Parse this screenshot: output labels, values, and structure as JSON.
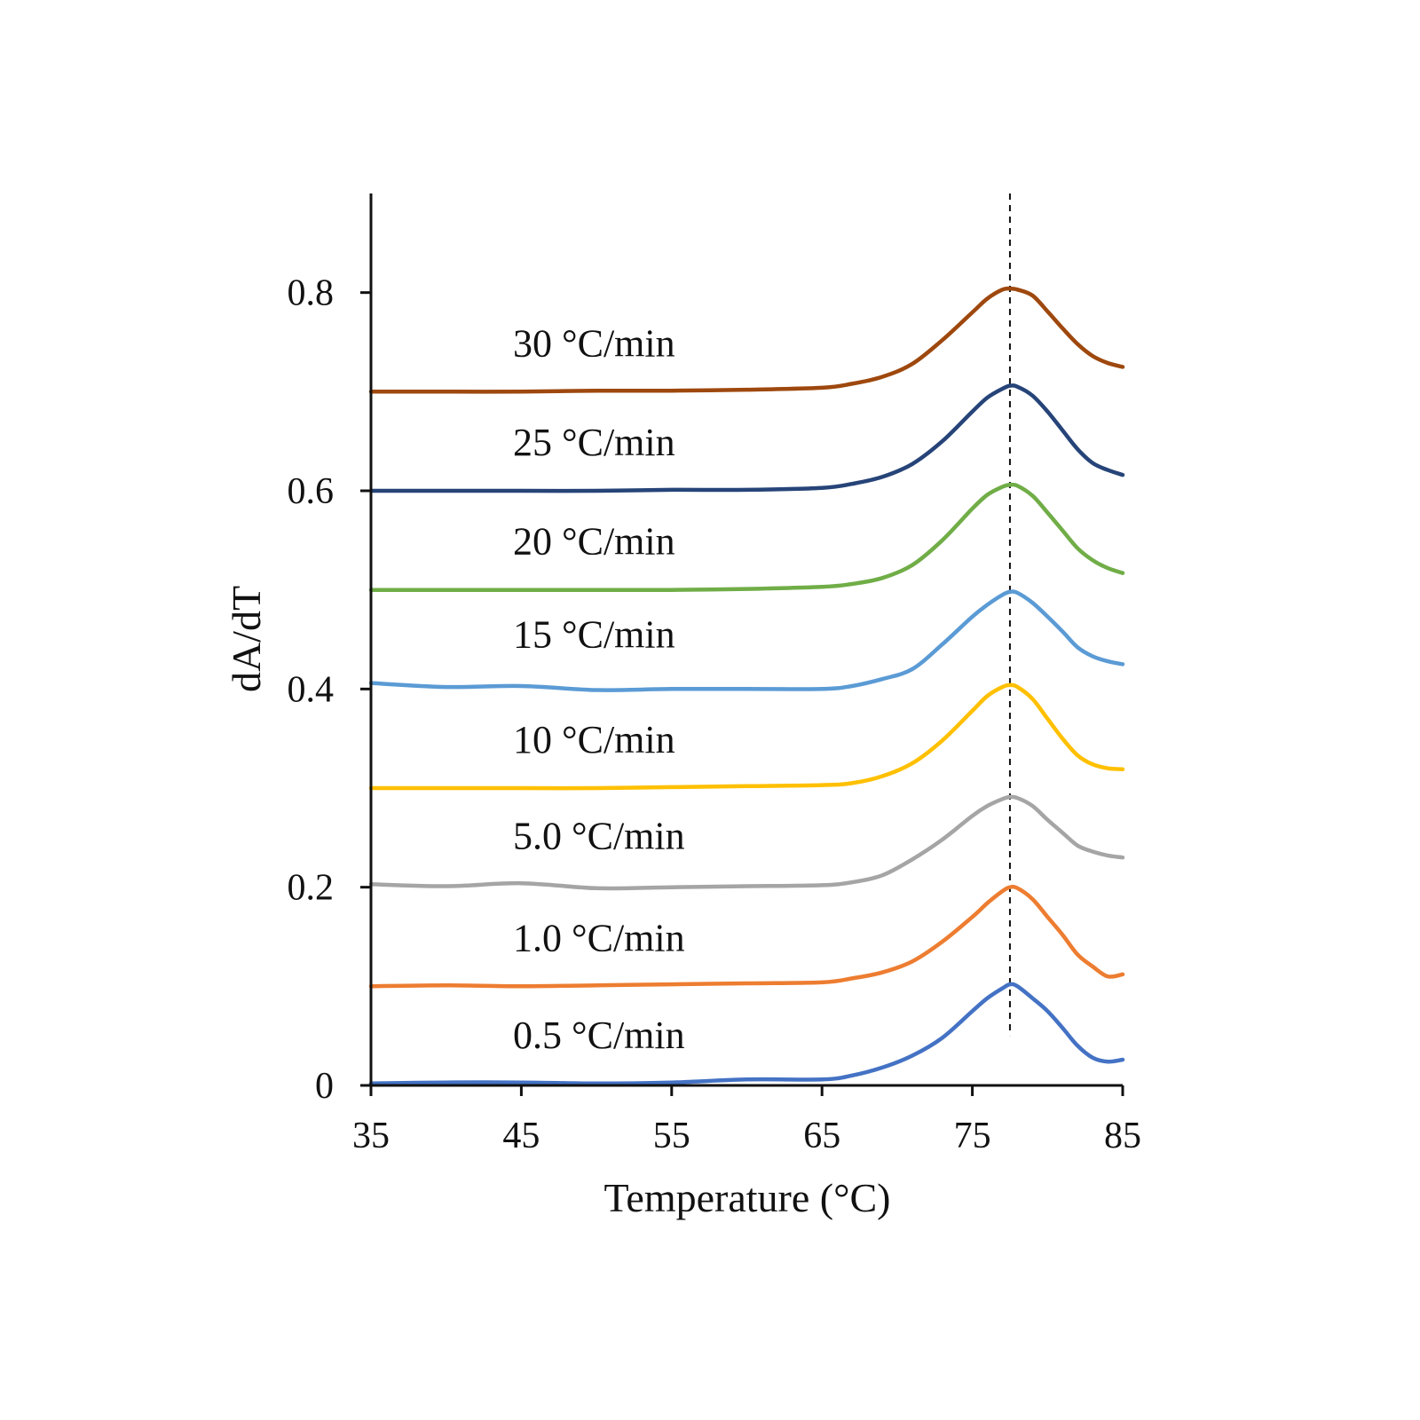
{
  "chart_data": {
    "type": "line",
    "xlabel": "Temperature (°C)",
    "ylabel": "dA/dT",
    "xlim": [
      35,
      85
    ],
    "ylim": [
      0,
      0.9
    ],
    "xticks": [
      35,
      45,
      55,
      65,
      75,
      85
    ],
    "xtick_labels": [
      "35",
      "45",
      "55",
      "65",
      "75",
      "85"
    ],
    "yticks": [
      0,
      0.2,
      0.4,
      0.6,
      0.8
    ],
    "ytick_labels": [
      "0",
      "0.2",
      "0.4",
      "0.6",
      "0.8"
    ],
    "grid": false,
    "reference_line": {
      "x": 77.5,
      "style": "dashed",
      "y_range": [
        0.05,
        0.9
      ]
    },
    "x": [
      35,
      40,
      45,
      50,
      55,
      60,
      65,
      67,
      69,
      71,
      73,
      75,
      76,
      77,
      77.5,
      78,
      79,
      80,
      81,
      82,
      83,
      84,
      85
    ],
    "series": [
      {
        "name": "0.5 °C/min",
        "color": "#4472c4",
        "values": [
          0.002,
          0.003,
          0.003,
          0.002,
          0.003,
          0.006,
          0.006,
          0.01,
          0.018,
          0.03,
          0.048,
          0.075,
          0.088,
          0.098,
          0.102,
          0.1,
          0.088,
          0.075,
          0.058,
          0.04,
          0.028,
          0.024,
          0.026
        ]
      },
      {
        "name": "1.0 °C/min",
        "color": "#ed7d31",
        "values": [
          0.1,
          0.101,
          0.1,
          0.101,
          0.102,
          0.103,
          0.104,
          0.108,
          0.114,
          0.125,
          0.145,
          0.17,
          0.184,
          0.196,
          0.2,
          0.199,
          0.188,
          0.17,
          0.152,
          0.132,
          0.12,
          0.11,
          0.112
        ]
      },
      {
        "name": "5.0 °C/min",
        "color": "#a5a5a5",
        "values": [
          0.203,
          0.201,
          0.204,
          0.199,
          0.2,
          0.201,
          0.202,
          0.205,
          0.212,
          0.228,
          0.248,
          0.272,
          0.282,
          0.289,
          0.291,
          0.29,
          0.282,
          0.268,
          0.255,
          0.242,
          0.236,
          0.232,
          0.23
        ]
      },
      {
        "name": "10 °C/min",
        "color": "#ffc000",
        "values": [
          0.3,
          0.3,
          0.3,
          0.3,
          0.301,
          0.302,
          0.303,
          0.305,
          0.312,
          0.325,
          0.348,
          0.378,
          0.393,
          0.402,
          0.404,
          0.402,
          0.39,
          0.37,
          0.35,
          0.333,
          0.324,
          0.32,
          0.319
        ]
      },
      {
        "name": "15 °C/min",
        "color": "#5b9bd5",
        "values": [
          0.406,
          0.402,
          0.403,
          0.399,
          0.4,
          0.4,
          0.4,
          0.403,
          0.41,
          0.42,
          0.445,
          0.473,
          0.485,
          0.495,
          0.498,
          0.497,
          0.487,
          0.473,
          0.458,
          0.442,
          0.433,
          0.428,
          0.425
        ]
      },
      {
        "name": "20 °C/min",
        "color": "#70ad47",
        "values": [
          0.5,
          0.5,
          0.5,
          0.5,
          0.5,
          0.501,
          0.503,
          0.506,
          0.512,
          0.525,
          0.55,
          0.582,
          0.596,
          0.604,
          0.606,
          0.605,
          0.595,
          0.578,
          0.56,
          0.542,
          0.53,
          0.522,
          0.517
        ]
      },
      {
        "name": "25 °C/min",
        "color": "#264478",
        "values": [
          0.6,
          0.6,
          0.6,
          0.6,
          0.601,
          0.601,
          0.603,
          0.607,
          0.614,
          0.627,
          0.65,
          0.68,
          0.694,
          0.703,
          0.706,
          0.705,
          0.696,
          0.68,
          0.661,
          0.642,
          0.628,
          0.621,
          0.616
        ]
      },
      {
        "name": "30 °C/min",
        "color": "#9e480e",
        "values": [
          0.7,
          0.7,
          0.7,
          0.701,
          0.701,
          0.702,
          0.704,
          0.708,
          0.715,
          0.728,
          0.752,
          0.78,
          0.794,
          0.803,
          0.804,
          0.803,
          0.797,
          0.781,
          0.764,
          0.748,
          0.736,
          0.729,
          0.725
        ]
      }
    ]
  }
}
